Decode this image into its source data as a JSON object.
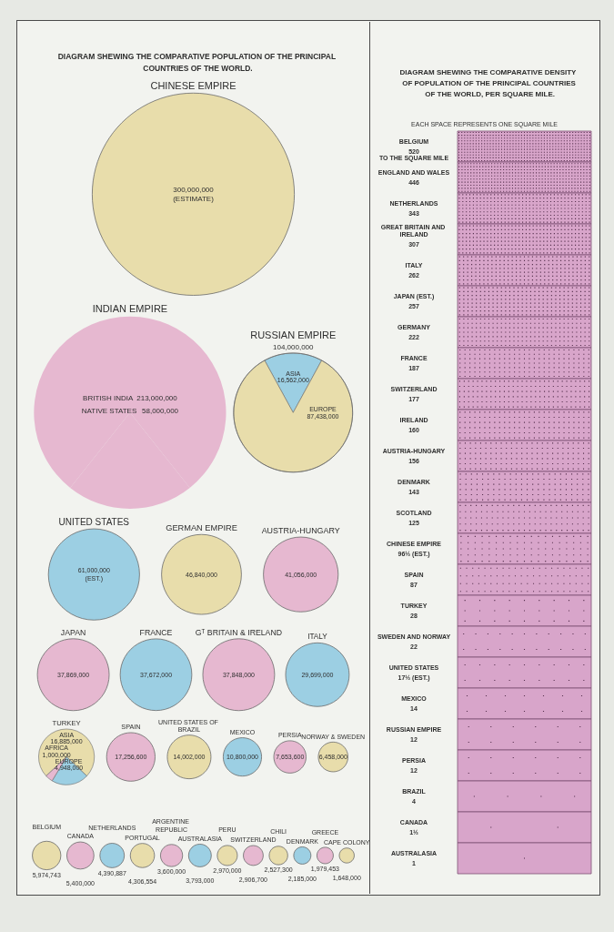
{
  "chart_data": [
    {
      "type": "other",
      "title": "DIAGRAM SHEWING THE COMPARATIVE POPULATION OF THE PRINCIPAL COUNTRIES OF THE WORLD.",
      "categories": [
        "CHINESE EMPIRE",
        "INDIAN EMPIRE",
        "RUSSIAN EMPIRE",
        "UNITED STATES",
        "GERMAN EMPIRE",
        "AUSTRIA-HUNGARY",
        "JAPAN",
        "FRANCE",
        "Gᵀ BRITAIN & IRELAND",
        "ITALY",
        "TURKEY",
        "SPAIN",
        "UNITED STATES OF BRAZIL",
        "MEXICO",
        "PERSIA",
        "NORWAY & SWEDEN",
        "BELGIUM",
        "CANADA",
        "NETHERLANDS",
        "PORTUGAL",
        "ARGENTINE REPUBLIC",
        "AUSTRALASIA",
        "PERU",
        "SWITZERLAND",
        "CHILI",
        "DENMARK",
        "GREECE",
        "CAPE COLONY"
      ],
      "series": [
        {
          "values": [
            300000000,
            null,
            104000000,
            61000000,
            46840000,
            41056000,
            37869000,
            37672000,
            37848000,
            29699000,
            null,
            17256600,
            14002000,
            10800000,
            7653600,
            6458000,
            5974743,
            5400000,
            4390887,
            4306554,
            3600000,
            3793000,
            2970000,
            2906700,
            2527300,
            2185000,
            1979453,
            1648000
          ],
          "value_labels": [
            "300,000,000\n(ESTIMATE)",
            null,
            "104,000,000",
            "61,000,000\n(EST.)",
            "46,840,000",
            "41,056,000",
            "37,869,000",
            "37,672,000",
            "37,848,000",
            "29,699,000",
            null,
            "17,256,600",
            "14,002,000",
            "10,800,000",
            "7,653,600",
            "6,458,000",
            "5,974,743",
            "5,400,000",
            "4,390,887",
            "4,306,554",
            "3,600,000",
            "3,793,000",
            "2,970,000",
            "2,906,700",
            "2,527,300",
            "2,185,000",
            "1,979,453",
            "1,648,000"
          ],
          "colors": [
            "#e8ddab",
            null,
            null,
            "#9ccfe3",
            "#e8ddab",
            "#e6b8d0",
            "#e6b8d0",
            "#9ccfe3",
            "#e6b8d0",
            "#9ccfe3",
            null,
            "#e6b8d0",
            "#e8ddab",
            "#9ccfe3",
            "#e6b8d0",
            "#e8ddab",
            "#e8ddab",
            "#e6b8d0",
            "#9ccfe3",
            "#e8ddab",
            "#e6b8d0",
            "#9ccfe3",
            "#e8ddab",
            "#e6b8d0",
            "#e8ddab",
            "#9ccfe3",
            "#e6b8d0",
            "#e8ddab"
          ]
        },
        {
          "name": "BRITISH INDIA",
          "values": [
            null,
            213000000,
            null,
            null,
            null,
            null,
            null,
            null,
            null,
            null,
            null,
            null,
            null,
            null,
            null,
            null,
            null,
            null,
            null,
            null,
            null,
            null,
            null,
            null,
            null,
            null,
            null,
            null
          ],
          "value_labels": [
            null,
            "213,000,000",
            null,
            null,
            null,
            null,
            null,
            null,
            null,
            null,
            null,
            null,
            null,
            null,
            null,
            null,
            null,
            null,
            null,
            null,
            null,
            null,
            null,
            null,
            null,
            null,
            null,
            null
          ],
          "colors": [
            null,
            "#e6b8d0",
            null,
            null,
            null,
            null,
            null,
            null,
            null,
            null,
            null,
            null,
            null,
            null,
            null,
            null,
            null,
            null,
            null,
            null,
            null,
            null,
            null,
            null,
            null,
            null,
            null,
            null
          ]
        },
        {
          "name": "NATIVE STATES",
          "values": [
            null,
            58000000,
            null,
            null,
            null,
            null,
            null,
            null,
            null,
            null,
            null,
            null,
            null,
            null,
            null,
            null,
            null,
            null,
            null,
            null,
            null,
            null,
            null,
            null,
            null,
            null,
            null,
            null
          ],
          "value_labels": [
            null,
            "58,000,000",
            null,
            null,
            null,
            null,
            null,
            null,
            null,
            null,
            null,
            null,
            null,
            null,
            null,
            null,
            null,
            null,
            null,
            null,
            null,
            null,
            null,
            null,
            null,
            null,
            null,
            null
          ],
          "colors": [
            null,
            "#e6b8d0",
            null,
            null,
            null,
            null,
            null,
            null,
            null,
            null,
            null,
            null,
            null,
            null,
            null,
            null,
            null,
            null,
            null,
            null,
            null,
            null,
            null,
            null,
            null,
            null,
            null,
            null
          ]
        },
        {
          "name": "ASIA",
          "values": [
            null,
            null,
            16562000,
            null,
            null,
            null,
            null,
            null,
            null,
            null,
            16885000,
            null,
            null,
            null,
            null,
            null,
            null,
            null,
            null,
            null,
            null,
            null,
            null,
            null,
            null,
            null,
            null,
            null
          ],
          "value_labels": [
            null,
            null,
            "16,562,000",
            null,
            null,
            null,
            null,
            null,
            null,
            null,
            "16,885,000",
            null,
            null,
            null,
            null,
            null,
            null,
            null,
            null,
            null,
            null,
            null,
            null,
            null,
            null,
            null,
            null,
            null
          ],
          "colors": [
            null,
            null,
            "#9ccfe3",
            null,
            null,
            null,
            null,
            null,
            null,
            null,
            "#e8ddab",
            null,
            null,
            null,
            null,
            null,
            null,
            null,
            null,
            null,
            null,
            null,
            null,
            null,
            null,
            null,
            null,
            null
          ]
        },
        {
          "name": "EUROPE",
          "values": [
            null,
            null,
            87438000,
            null,
            null,
            null,
            null,
            null,
            null,
            null,
            4948000,
            null,
            null,
            null,
            null,
            null,
            null,
            null,
            null,
            null,
            null,
            null,
            null,
            null,
            null,
            null,
            null,
            null
          ],
          "value_labels": [
            null,
            null,
            "87,438,000",
            null,
            null,
            null,
            null,
            null,
            null,
            null,
            "4,948,000",
            null,
            null,
            null,
            null,
            null,
            null,
            null,
            null,
            null,
            null,
            null,
            null,
            null,
            null,
            null,
            null,
            null
          ],
          "colors": [
            null,
            null,
            "#e8ddab",
            null,
            null,
            null,
            null,
            null,
            null,
            null,
            "#9ccfe3",
            null,
            null,
            null,
            null,
            null,
            null,
            null,
            null,
            null,
            null,
            null,
            null,
            null,
            null,
            null,
            null,
            null
          ]
        },
        {
          "name": "AFRICA",
          "values": [
            null,
            null,
            null,
            null,
            null,
            null,
            null,
            null,
            null,
            null,
            1000000,
            null,
            null,
            null,
            null,
            null,
            null,
            null,
            null,
            null,
            null,
            null,
            null,
            null,
            null,
            null,
            null,
            null
          ],
          "value_labels": [
            null,
            null,
            null,
            null,
            null,
            null,
            null,
            null,
            null,
            null,
            "1,000,000",
            null,
            null,
            null,
            null,
            null,
            null,
            null,
            null,
            null,
            null,
            null,
            null,
            null,
            null,
            null,
            null,
            null
          ],
          "colors": [
            null,
            null,
            null,
            null,
            null,
            null,
            null,
            null,
            null,
            null,
            "#e6b8d0",
            null,
            null,
            null,
            null,
            null,
            null,
            null,
            null,
            null,
            null,
            null,
            null,
            null,
            null,
            null,
            null,
            null
          ]
        }
      ]
    },
    {
      "type": "other",
      "title": "DIAGRAM SHEWING THE COMPARATIVE DENSITY OF POPULATION OF THE PRINCIPAL COUNTRIES OF THE WORLD, PER SQUARE MILE.",
      "subtitle": "EACH SPACE REPRESENTS ONE SQUARE MILE",
      "categories": [
        "BELGIUM",
        "ENGLAND AND WALES",
        "NETHERLANDS",
        "GREAT BRITAIN AND IRELAND",
        "ITALY",
        "JAPAN (EST.)",
        "GERMANY",
        "FRANCE",
        "SWITZERLAND",
        "IRELAND",
        "AUSTRIA-HUNGARY",
        "DENMARK",
        "SCOTLAND",
        "CHINESE EMPIRE",
        "SPAIN",
        "TURKEY",
        "SWEDEN AND NORWAY",
        "UNITED STATES",
        "MEXICO",
        "RUSSIAN EMPIRE",
        "PERSIA",
        "BRAZIL",
        "CANADA",
        "AUSTRALASIA"
      ],
      "values": [
        520,
        446,
        343,
        307,
        262,
        257,
        222,
        187,
        177,
        160,
        156,
        143,
        125,
        96.5,
        87,
        28,
        22,
        17.5,
        14,
        12,
        12,
        4,
        1.5,
        1
      ],
      "value_labels": [
        "520",
        "446",
        "343",
        "307",
        "262",
        "257",
        "222",
        "187",
        "177",
        "160",
        "156",
        "143",
        "125",
        "96½ (EST.)",
        "87",
        "28",
        "22",
        "17½ (EST.)",
        "14",
        "12",
        "12",
        "4",
        "1½",
        "1"
      ],
      "annotations": [
        "TO THE SQUARE MILE"
      ],
      "color": "#d8a5ca"
    }
  ]
}
